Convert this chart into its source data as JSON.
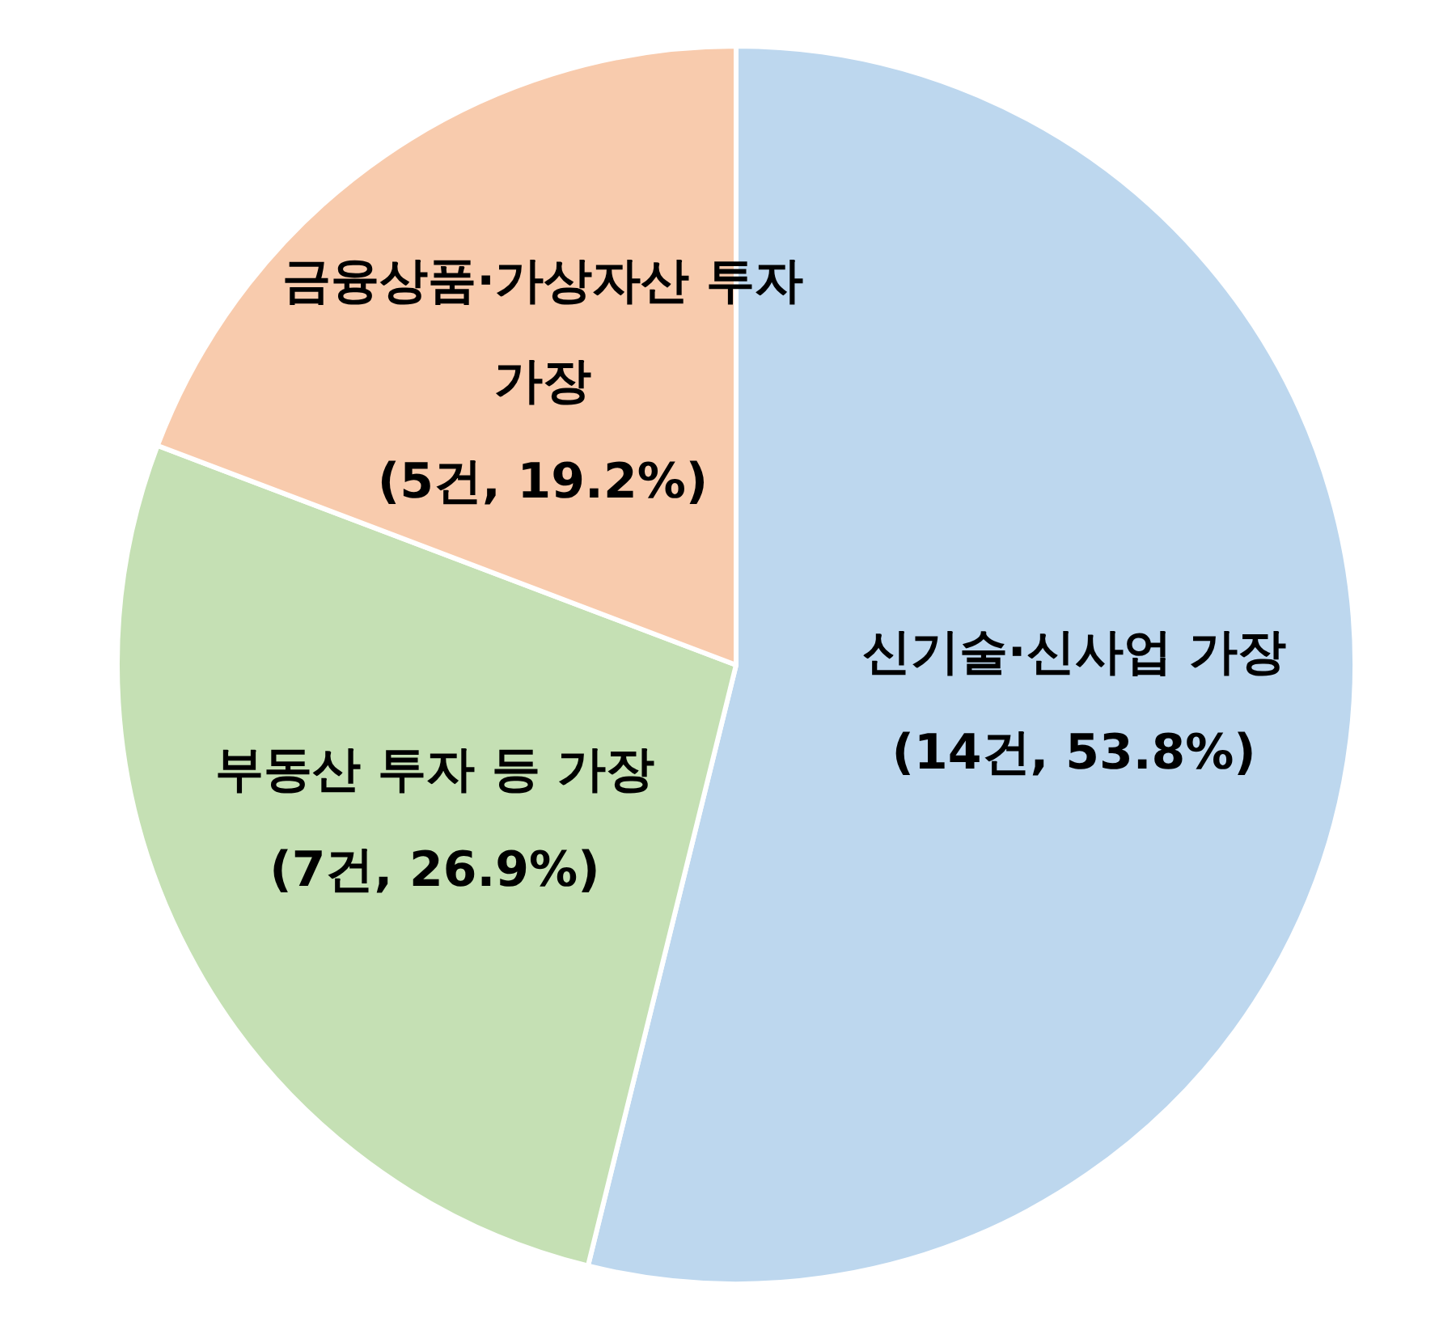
{
  "chart_data": {
    "type": "pie",
    "categories": [
      "신기술·신사업 가장",
      "부동산 투자 등 가장",
      "금융상품·가상자산 투자 가장"
    ],
    "values": [
      14,
      7,
      5
    ],
    "value_labels": [
      "(14건, 53.8%)",
      "(7건, 26.9%)",
      "(5건, 19.2%)"
    ],
    "colors": [
      "#bdd7ee",
      "#c5e0b4",
      "#f8cbad"
    ],
    "legend": false
  }
}
